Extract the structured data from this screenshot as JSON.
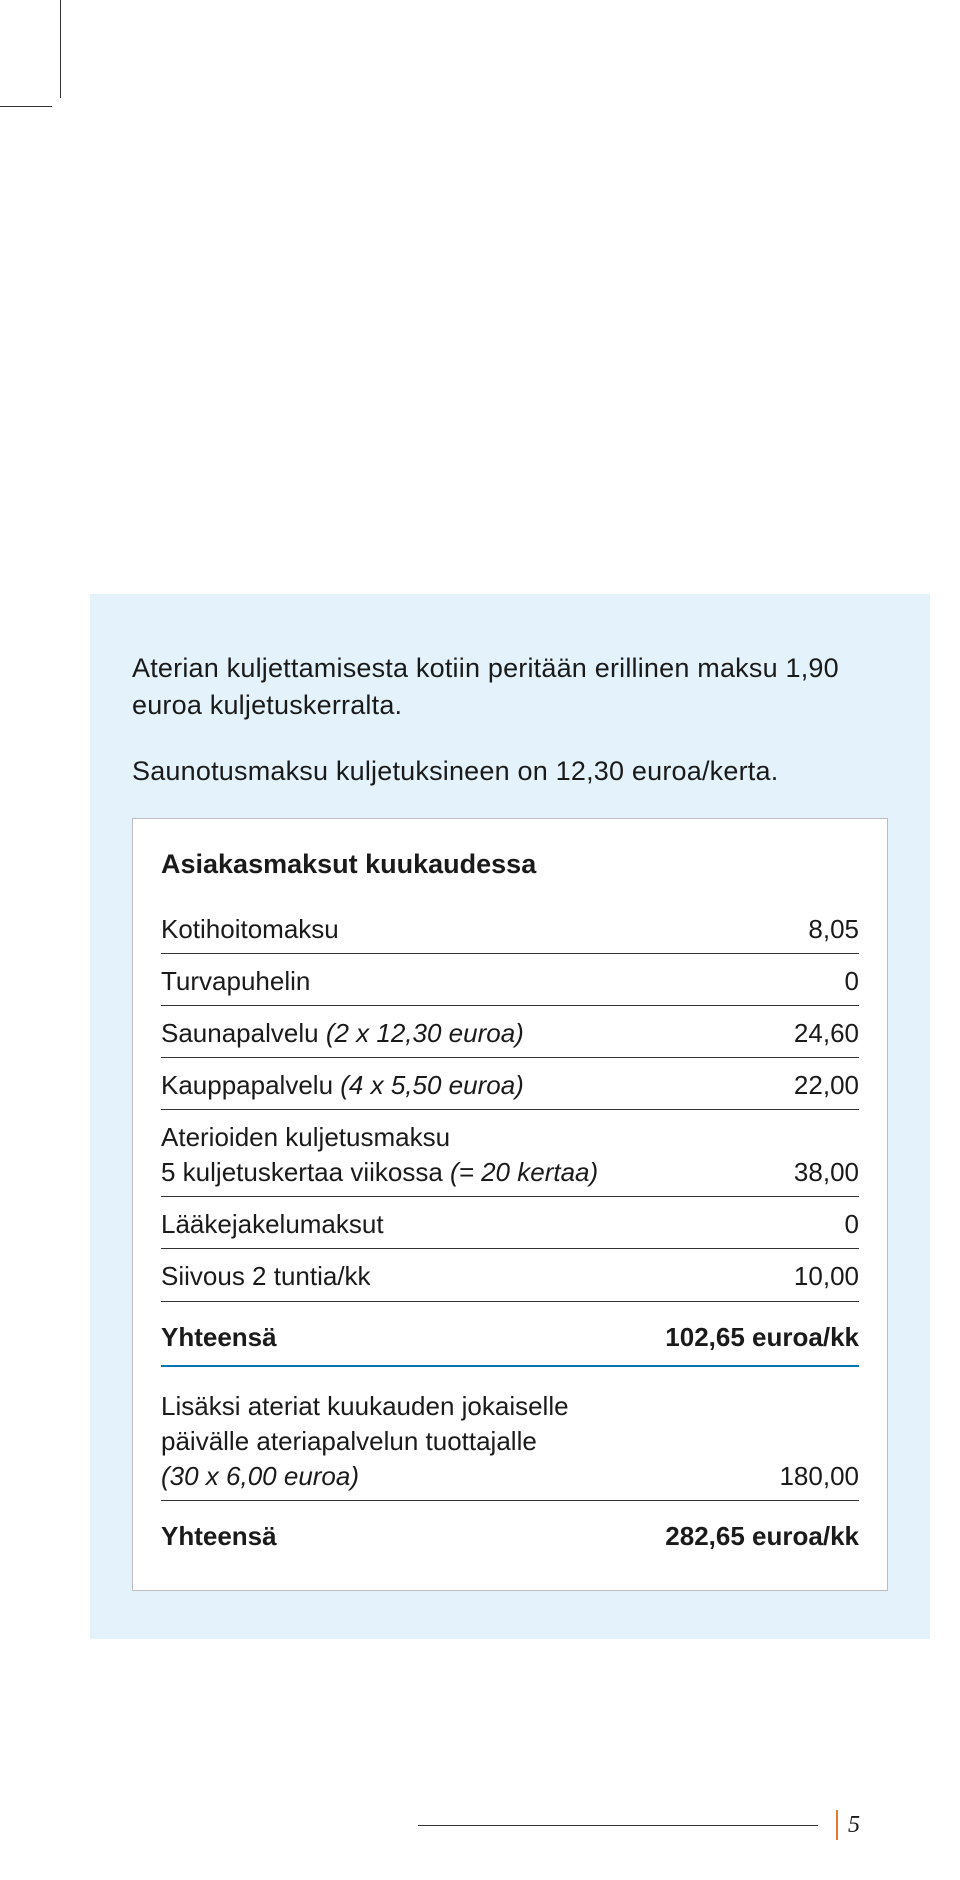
{
  "intro": {
    "p1": "Aterian kuljettamisesta kotiin peritään erillinen maksu 1,90 euroa kuljetuskerralta.",
    "p2": "Saunotusmaksu kuljetuksineen on 12,30 euroa/kerta."
  },
  "table": {
    "title": "Asiakasmaksut kuukaudessa",
    "rows": [
      {
        "label": "Kotihoitomaksu",
        "detail": "",
        "value": "8,05"
      },
      {
        "label": "Turvapuhelin",
        "detail": "",
        "value": "0"
      },
      {
        "label": "Saunapalvelu ",
        "detail": "(2 x 12,30 euroa)",
        "value": "24,60"
      },
      {
        "label": "Kauppapalvelu ",
        "detail": "(4 x 5,50 euroa)",
        "value": "22,00"
      },
      {
        "label": "Aterioiden kuljetusmaksu",
        "line2a": "5 kuljetuskertaa viikossa ",
        "line2b": "(= 20 kertaa)",
        "value": "38,00"
      },
      {
        "label": "Lääkejakelumaksut",
        "detail": "",
        "value": "0"
      },
      {
        "label": "Siivous 2 tuntia/kk",
        "detail": "",
        "value": "10,00"
      }
    ],
    "total1": {
      "label": "Yhteensä",
      "value": "102,65 euroa/kk"
    },
    "extra": {
      "line1": "Lisäksi ateriat kuukauden jokaiselle",
      "line2": "päivälle ateriapalvelun tuottajalle",
      "line3": "(30 x 6,00 euroa)",
      "value": "180,00"
    },
    "total2": {
      "label": "Yhteensä",
      "value": "282,65 euroa/kk"
    }
  },
  "pageNumber": "5",
  "colors": {
    "bg_blue": "#e4f3fb",
    "rule_blue": "#0073b5",
    "accent_orange": "#e37a2e",
    "text": "#1a1a1a",
    "card_border": "#bdbdbd"
  }
}
